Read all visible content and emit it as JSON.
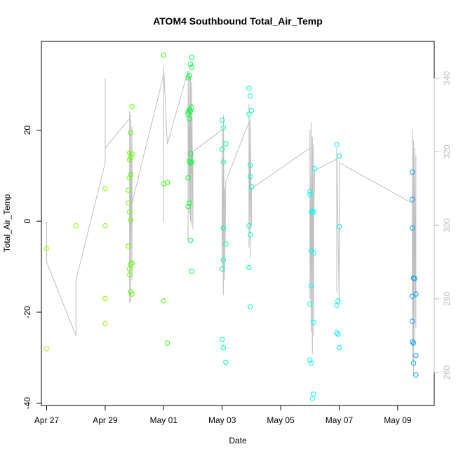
{
  "chart_data": {
    "type": "scatter",
    "title": "ATOM4 Southbound Total_Air_Temp",
    "xlabel": "Date",
    "ylabel": "Total_Air_Temp",
    "x_ticks": [
      "Apr 27",
      "Apr 29",
      "May 01",
      "May 03",
      "May 05",
      "May 07",
      "May 09"
    ],
    "y_ticks": [
      "-40",
      "-20",
      "0",
      "20"
    ],
    "y2_ticks": [
      "260",
      "280",
      "300",
      "320",
      "340"
    ],
    "xlim": [
      "Apr 26 19:40",
      "May 10 06:00"
    ],
    "ylim": [
      -40.5,
      39.5
    ],
    "y2lim": [
      251,
      350
    ],
    "grid": false,
    "legend": "none",
    "colors": {
      "axis": "#000000",
      "right_axis": "#bebebe",
      "line": "#bebebe"
    },
    "series": [
      {
        "type": "points",
        "points": [
          [
            "Apr 27 00:00",
            -6,
            "#9fff00"
          ],
          [
            "Apr 27 00:00",
            -28,
            "#9fff00"
          ],
          [
            "Apr 28 00:00",
            -1,
            "#8fff00"
          ],
          [
            "Apr 29 00:00",
            7.2,
            "#80ff00"
          ],
          [
            "Apr 29 00:00",
            -1,
            "#80ff00"
          ],
          [
            "Apr 29 00:00",
            -17,
            "#80ff00"
          ],
          [
            "Apr 29 00:00",
            -22.5,
            "#80ff00"
          ],
          [
            "Apr 29 19:00",
            -5.5,
            "#6aff00"
          ],
          [
            "Apr 29 19:00",
            6.8,
            "#6aff00"
          ],
          [
            "Apr 29 19:00",
            4,
            "#6aff00"
          ],
          [
            "Apr 29 20:00",
            15,
            "#60ff00"
          ],
          [
            "Apr 29 20:00",
            13.5,
            "#60ff00"
          ],
          [
            "Apr 29 20:00",
            9.5,
            "#60ff00"
          ],
          [
            "Apr 29 20:00",
            2,
            "#60ff00"
          ],
          [
            "Apr 29 20:00",
            -10.5,
            "#60ff00"
          ],
          [
            "Apr 29 20:00",
            -11.8,
            "#60ff00"
          ],
          [
            "Apr 29 21:00",
            19.5,
            "#58ff00"
          ],
          [
            "Apr 29 21:00",
            14,
            "#58ff00"
          ],
          [
            "Apr 29 21:00",
            10.3,
            "#58ff00"
          ],
          [
            "Apr 29 21:00",
            0.2,
            "#58ff00"
          ],
          [
            "Apr 29 21:00",
            -9.5,
            "#58ff00"
          ],
          [
            "Apr 29 21:00",
            -15.5,
            "#58ff00"
          ],
          [
            "Apr 29 22:00",
            25.2,
            "#50ff00"
          ],
          [
            "Apr 29 22:00",
            14.8,
            "#50ff00"
          ],
          [
            "Apr 29 22:00",
            -9.2,
            "#50ff00"
          ],
          [
            "Apr 29 22:00",
            -16,
            "#50ff00"
          ],
          [
            "May 01 00:00",
            36.5,
            "#30ff00"
          ],
          [
            "May 01 00:00",
            8.2,
            "#30ff00"
          ],
          [
            "May 01 00:00",
            -17.5,
            "#30ff00"
          ],
          [
            "May 01 03:00",
            8.5,
            "#2fff00"
          ],
          [
            "May 01 03:00",
            -26.8,
            "#2fff00"
          ],
          [
            "May 01 20:00",
            31.5,
            "#00ff28"
          ],
          [
            "May 01 20:00",
            24,
            "#00ff28"
          ],
          [
            "May 01 20:00",
            23.5,
            "#00ff28"
          ],
          [
            "May 01 20:00",
            9.5,
            "#00ff28"
          ],
          [
            "May 01 20:00",
            3.2,
            "#00ff28"
          ],
          [
            "May 01 21:00",
            32,
            "#00ff30"
          ],
          [
            "May 01 21:00",
            24.5,
            "#00ff30"
          ],
          [
            "May 01 21:00",
            22.5,
            "#00ff30"
          ],
          [
            "May 01 21:00",
            13.2,
            "#00ff30"
          ],
          [
            "May 01 21:00",
            4,
            "#00ff30"
          ],
          [
            "May 01 22:00",
            34.5,
            "#00ff38"
          ],
          [
            "May 01 22:00",
            24.2,
            "#00ff38"
          ],
          [
            "May 01 22:00",
            14.8,
            "#00ff38"
          ],
          [
            "May 01 22:00",
            12.8,
            "#00ff38"
          ],
          [
            "May 01 22:00",
            -4.2,
            "#00ff38"
          ],
          [
            "May 01 23:00",
            33.8,
            "#00ff40"
          ],
          [
            "May 01 23:00",
            36,
            "#00ff40"
          ],
          [
            "May 01 23:00",
            25,
            "#00ff40"
          ],
          [
            "May 01 23:00",
            13,
            "#00ff40"
          ],
          [
            "May 01 23:00",
            -11,
            "#00ff40"
          ],
          [
            "May 03 00:00",
            22.2,
            "#00ff9f"
          ],
          [
            "May 03 00:00",
            15.8,
            "#00ff9f"
          ],
          [
            "May 03 00:00",
            -10.5,
            "#00ff9f"
          ],
          [
            "May 03 00:00",
            -26,
            "#00ff9f"
          ],
          [
            "May 03 01:00",
            20.5,
            "#00ffa8"
          ],
          [
            "May 03 01:00",
            13,
            "#00ffa8"
          ],
          [
            "May 03 01:00",
            -1.5,
            "#00ffa8"
          ],
          [
            "May 03 01:00",
            -8.5,
            "#00ffa8"
          ],
          [
            "May 03 01:00",
            -27.8,
            "#00ffa8"
          ],
          [
            "May 03 03:00",
            17,
            "#00ffb0"
          ],
          [
            "May 03 03:00",
            -5,
            "#00ffb0"
          ],
          [
            "May 03 03:00",
            -31,
            "#00ffb0"
          ],
          [
            "May 03 22:00",
            29.2,
            "#00ffc0"
          ],
          [
            "May 03 22:00",
            23.5,
            "#00ffc0"
          ],
          [
            "May 03 22:00",
            -1,
            "#00ffc0"
          ],
          [
            "May 03 22:00",
            -10.2,
            "#00ffc0"
          ],
          [
            "May 03 23:00",
            27.5,
            "#00ffc4"
          ],
          [
            "May 03 23:00",
            9.8,
            "#00ffc4"
          ],
          [
            "May 03 23:00",
            12.3,
            "#00ffc4"
          ],
          [
            "May 03 23:00",
            -3,
            "#00ffc4"
          ],
          [
            "May 03 23:00",
            -18.8,
            "#00ffc4"
          ],
          [
            "May 04 00:00",
            24.3,
            "#00ffc8"
          ],
          [
            "May 04 00:00",
            7.5,
            "#00ffc8"
          ],
          [
            "May 06 00:00",
            6.5,
            "#00fff0"
          ],
          [
            "May 06 00:00",
            5.8,
            "#00fff0"
          ],
          [
            "May 06 00:00",
            -18.2,
            "#00fff0"
          ],
          [
            "May 06 00:00",
            -30.5,
            "#00fff0"
          ],
          [
            "May 06 01:00",
            2,
            "#00fff4"
          ],
          [
            "May 06 01:00",
            -6.5,
            "#00fff4"
          ],
          [
            "May 06 01:00",
            -14.2,
            "#00fff4"
          ],
          [
            "May 06 01:00",
            -31.2,
            "#00fff4"
          ],
          [
            "May 06 02:00",
            2.2,
            "#00fff8"
          ],
          [
            "May 06 02:00",
            -39,
            "#00fff8"
          ],
          [
            "May 06 03:00",
            2,
            "#00fffc"
          ],
          [
            "May 06 03:00",
            -7,
            "#00fffc"
          ],
          [
            "May 06 03:00",
            -22.2,
            "#00fffc"
          ],
          [
            "May 06 03:00",
            -38,
            "#00fffc"
          ],
          [
            "May 06 04:00",
            11.5,
            "#00ffff"
          ],
          [
            "May 06 22:00",
            16.8,
            "#00f4ff"
          ],
          [
            "May 06 22:00",
            -18.5,
            "#00f4ff"
          ],
          [
            "May 06 22:00",
            -24.5,
            "#00f4ff"
          ],
          [
            "May 06 23:00",
            -17.5,
            "#00f0ff"
          ],
          [
            "May 06 23:00",
            -24.8,
            "#00f0ff"
          ],
          [
            "May 07 00:00",
            14.3,
            "#00eaff"
          ],
          [
            "May 07 00:00",
            -1.2,
            "#00eaff"
          ],
          [
            "May 07 00:00",
            -27.8,
            "#00eaff"
          ],
          [
            "May 09 12:00",
            10.8,
            "#00a8ff"
          ],
          [
            "May 09 12:00",
            4.8,
            "#00a8ff"
          ],
          [
            "May 09 12:00",
            -1.5,
            "#00a8ff"
          ],
          [
            "May 09 12:00",
            -16.5,
            "#00a8ff"
          ],
          [
            "May 09 12:00",
            -22,
            "#00a8ff"
          ],
          [
            "May 09 12:00",
            -26.5,
            "#00a8ff"
          ],
          [
            "May 09 13:00",
            -12.5,
            "#00a4ff"
          ],
          [
            "May 09 13:00",
            -26.8,
            "#00a4ff"
          ],
          [
            "May 09 13:00",
            -31.2,
            "#00a4ff"
          ],
          [
            "May 09 14:00",
            -12.6,
            "#00a0ff"
          ],
          [
            "May 09 15:00",
            -16,
            "#009cff"
          ],
          [
            "May 09 15:00",
            -29.5,
            "#009cff"
          ],
          [
            "May 09 15:00",
            -33.8,
            "#009cff"
          ]
        ]
      },
      {
        "type": "line",
        "axis": "right",
        "color": "#bebebe",
        "points": [
          [
            "Apr 27 00:00",
            301
          ],
          [
            "Apr 27 00:00",
            290
          ],
          [
            "Apr 28 00:00",
            270
          ],
          [
            "Apr 28 00:00",
            285
          ],
          [
            "Apr 29 00:00",
            317
          ],
          [
            "Apr 29 00:00",
            340
          ],
          [
            "Apr 29 00:00",
            321
          ],
          [
            "Apr 29 20:00",
            329
          ],
          [
            "Apr 29 20:00",
            279
          ],
          [
            "Apr 29 20:00",
            331
          ],
          [
            "Apr 29 20:00",
            281
          ],
          [
            "Apr 29 21:00",
            329
          ],
          [
            "Apr 29 21:00",
            279
          ],
          [
            "Apr 29 21:00",
            330
          ],
          [
            "Apr 29 22:00",
            287
          ],
          [
            "Apr 29 22:00",
            327
          ],
          [
            "Apr 29 22:00",
            285
          ],
          [
            "Apr 29 22:00",
            306
          ],
          [
            "May 01 00:00",
            341
          ],
          [
            "May 01 00:00",
            301
          ],
          [
            "May 01 00:00",
            343
          ],
          [
            "May 01 03:00",
            322
          ],
          [
            "May 01 20:00",
            342
          ],
          [
            "May 01 20:00",
            296
          ],
          [
            "May 01 20:00",
            339
          ],
          [
            "May 01 21:00",
            303
          ],
          [
            "May 01 21:00",
            342
          ],
          [
            "May 01 22:00",
            301
          ],
          [
            "May 01 22:00",
            340
          ],
          [
            "May 01 23:00",
            300
          ],
          [
            "May 01 23:00",
            339
          ],
          [
            "May 02 00:00",
            299
          ],
          [
            "May 02 00:00",
            320
          ],
          [
            "May 03 00:00",
            326
          ],
          [
            "May 03 00:00",
            288
          ],
          [
            "May 03 00:00",
            325
          ],
          [
            "May 03 01:00",
            281
          ],
          [
            "May 03 01:00",
            330
          ],
          [
            "May 03 02:00",
            286
          ],
          [
            "May 03 02:00",
            310
          ],
          [
            "May 03 02:00",
            285
          ],
          [
            "May 03 03:00",
            312
          ],
          [
            "May 03 22:00",
            328
          ],
          [
            "May 03 22:00",
            294
          ],
          [
            "May 03 22:00",
            333
          ],
          [
            "May 03 23:00",
            291
          ],
          [
            "May 03 23:00",
            329
          ],
          [
            "May 04 00:00",
            300
          ],
          [
            "May 04 00:00",
            310
          ],
          [
            "May 06 00:00",
            321
          ],
          [
            "May 06 00:00",
            280
          ],
          [
            "May 06 00:00",
            326
          ],
          [
            "May 06 01:00",
            271
          ],
          [
            "May 06 01:00",
            328
          ],
          [
            "May 06 02:00",
            265
          ],
          [
            "May 06 02:00",
            324
          ],
          [
            "May 06 03:00",
            270
          ],
          [
            "May 06 03:00",
            322
          ],
          [
            "May 06 03:00",
            301
          ],
          [
            "May 06 04:00",
            315
          ],
          [
            "May 06 22:00",
            318
          ],
          [
            "May 06 22:00",
            282
          ],
          [
            "May 06 22:00",
            321
          ],
          [
            "May 07 00:00",
            279
          ],
          [
            "May 07 00:00",
            317
          ],
          [
            "May 09 12:00",
            306
          ],
          [
            "May 09 12:00",
            326
          ],
          [
            "May 09 12:00",
            263
          ],
          [
            "May 09 13:00",
            323
          ],
          [
            "May 09 13:00",
            259
          ],
          [
            "May 09 13:00",
            322
          ],
          [
            "May 09 14:00",
            268
          ],
          [
            "May 09 14:00",
            321
          ],
          [
            "May 09 15:00",
            272
          ],
          [
            "May 09 15:00",
            319
          ]
        ]
      }
    ]
  }
}
